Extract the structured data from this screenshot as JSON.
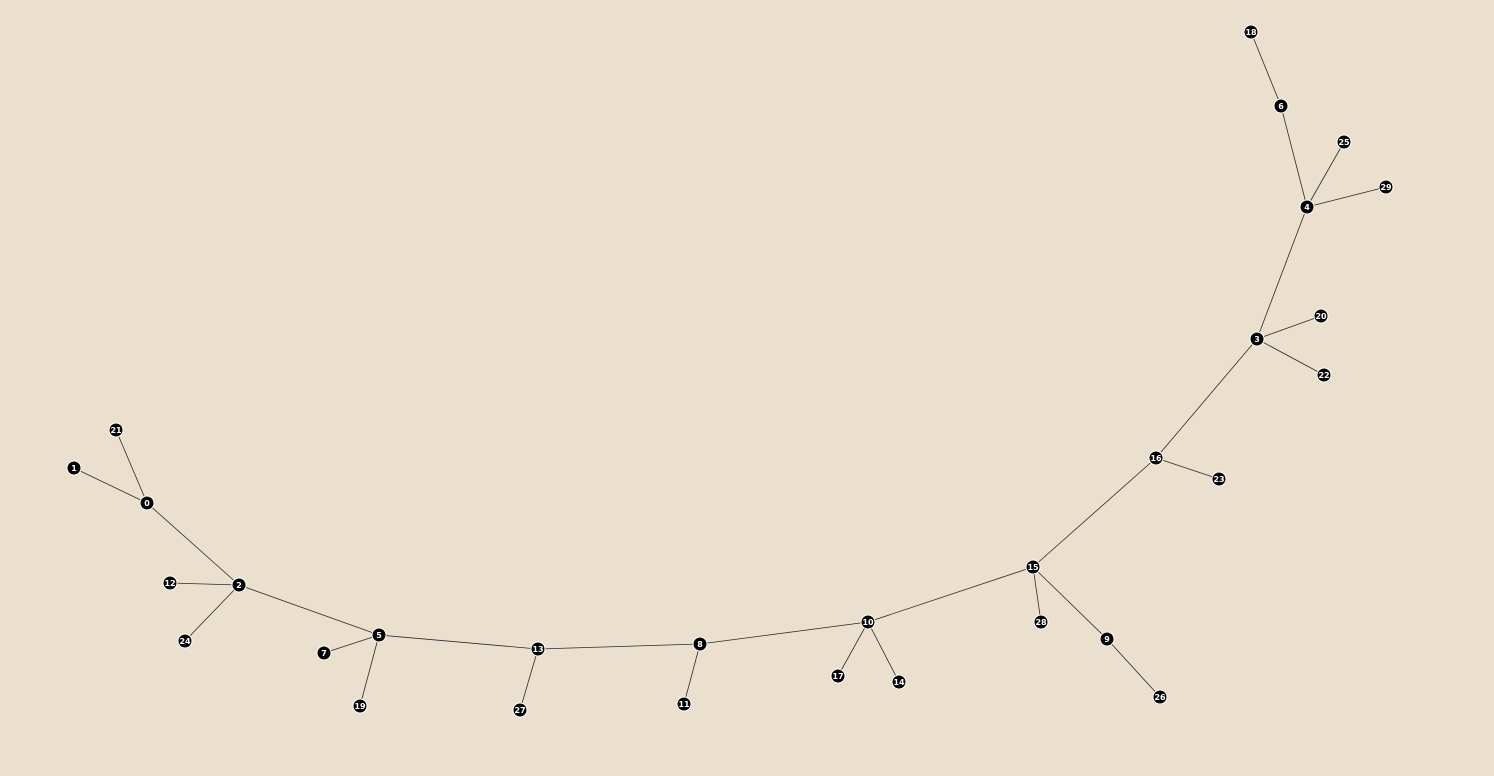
{
  "graph": {
    "type": "tree",
    "colors": {
      "background": "#ebe0cd",
      "node_fill": "#000000",
      "node_label": "#ffffff",
      "edge": "#2a2a2a"
    },
    "nodes": [
      {
        "id": "0",
        "label": "0"
      },
      {
        "id": "1",
        "label": "1"
      },
      {
        "id": "2",
        "label": "2"
      },
      {
        "id": "3",
        "label": "3"
      },
      {
        "id": "4",
        "label": "4"
      },
      {
        "id": "5",
        "label": "5"
      },
      {
        "id": "6",
        "label": "6"
      },
      {
        "id": "7",
        "label": "7"
      },
      {
        "id": "8",
        "label": "8"
      },
      {
        "id": "9",
        "label": "9"
      },
      {
        "id": "10",
        "label": "10"
      },
      {
        "id": "11",
        "label": "11"
      },
      {
        "id": "12",
        "label": "12"
      },
      {
        "id": "13",
        "label": "13"
      },
      {
        "id": "14",
        "label": "14"
      },
      {
        "id": "15",
        "label": "15"
      },
      {
        "id": "16",
        "label": "16"
      },
      {
        "id": "17",
        "label": "17"
      },
      {
        "id": "18",
        "label": "18"
      },
      {
        "id": "19",
        "label": "19"
      },
      {
        "id": "20",
        "label": "20"
      },
      {
        "id": "21",
        "label": "21"
      },
      {
        "id": "22",
        "label": "22"
      },
      {
        "id": "23",
        "label": "23"
      },
      {
        "id": "24",
        "label": "24"
      },
      {
        "id": "25",
        "label": "25"
      },
      {
        "id": "26",
        "label": "26"
      },
      {
        "id": "27",
        "label": "27"
      },
      {
        "id": "28",
        "label": "28"
      },
      {
        "id": "29",
        "label": "29"
      }
    ],
    "edges": [
      [
        "0",
        "1"
      ],
      [
        "0",
        "21"
      ],
      [
        "0",
        "2"
      ],
      [
        "2",
        "12"
      ],
      [
        "2",
        "24"
      ],
      [
        "2",
        "5"
      ],
      [
        "5",
        "7"
      ],
      [
        "5",
        "19"
      ],
      [
        "5",
        "13"
      ],
      [
        "13",
        "27"
      ],
      [
        "13",
        "8"
      ],
      [
        "8",
        "11"
      ],
      [
        "8",
        "10"
      ],
      [
        "10",
        "17"
      ],
      [
        "10",
        "14"
      ],
      [
        "10",
        "15"
      ],
      [
        "15",
        "28"
      ],
      [
        "15",
        "9"
      ],
      [
        "9",
        "26"
      ],
      [
        "15",
        "16"
      ],
      [
        "16",
        "23"
      ],
      [
        "16",
        "3"
      ],
      [
        "3",
        "20"
      ],
      [
        "3",
        "22"
      ],
      [
        "3",
        "4"
      ],
      [
        "4",
        "25"
      ],
      [
        "4",
        "29"
      ],
      [
        "4",
        "6"
      ],
      [
        "6",
        "18"
      ]
    ]
  }
}
